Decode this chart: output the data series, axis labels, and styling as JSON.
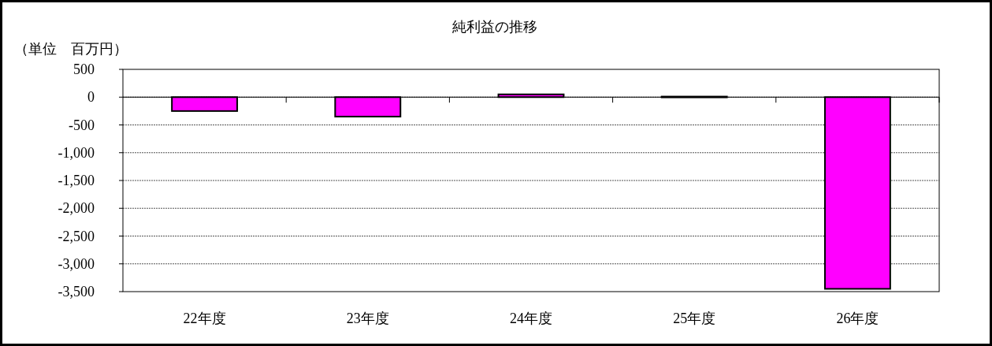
{
  "chart_data": {
    "type": "bar",
    "title": "純利益の推移",
    "ylabel": "（単位　百万円）",
    "categories": [
      "22年度",
      "23年度",
      "24年度",
      "25年度",
      "26年度"
    ],
    "values": [
      -250,
      -350,
      50,
      10,
      -3450
    ],
    "color": "#ff00ff",
    "ylim": [
      -3500,
      500
    ],
    "yticks": [
      500,
      0,
      {
        "value": -500,
        "label": "-500"
      },
      {
        "value": -1000,
        "label": "-1,000"
      },
      {
        "value": -1500,
        "label": "-1,500"
      },
      {
        "value": -2000,
        "label": "-2,000"
      },
      {
        "value": -2500,
        "label": "-2,500"
      },
      {
        "value": -3000,
        "label": "-3,000"
      },
      {
        "value": -3500,
        "label": "-3,500"
      }
    ],
    "grid": "y"
  }
}
